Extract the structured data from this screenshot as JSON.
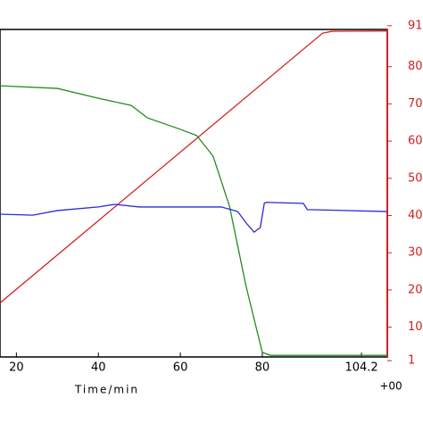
{
  "chart_data": {
    "type": "line",
    "x_label": "Time/min",
    "annotation": "+00",
    "xlim": [
      16,
      110.5
    ],
    "xticks": [
      20,
      40,
      60,
      80,
      104.2
    ],
    "ylim": [
      0,
      100
    ],
    "y2lim": [
      2,
      90
    ],
    "y2ticks": [
      1,
      10,
      20,
      30,
      40,
      50,
      60,
      70,
      80,
      91
    ],
    "series": [
      {
        "color": "#d42020",
        "axis": "y2",
        "x": [
          16,
          94.7,
          97,
          110.5
        ],
        "values": [
          16.5,
          89,
          89.5,
          89.6
        ]
      },
      {
        "color": "#228b22",
        "x": [
          16,
          30,
          40,
          48,
          52,
          60,
          64,
          68,
          72,
          76,
          80,
          82,
          110.5
        ],
        "values": [
          82.8,
          82,
          79,
          76.8,
          73,
          69.5,
          67.6,
          61.3,
          46,
          21.8,
          1.4,
          0.5,
          0.5
        ]
      },
      {
        "color": "#2a2ad4",
        "x": [
          16,
          24,
          30,
          40,
          44,
          50,
          70,
          74,
          76,
          78,
          79.5,
          80.5,
          81,
          90,
          91,
          110.5
        ],
        "values": [
          43.6,
          43.3,
          44.7,
          45.8,
          46.6,
          45.8,
          45.8,
          44.4,
          41,
          38.1,
          39.5,
          47,
          47.2,
          46.9,
          45,
          44.4
        ]
      }
    ]
  }
}
